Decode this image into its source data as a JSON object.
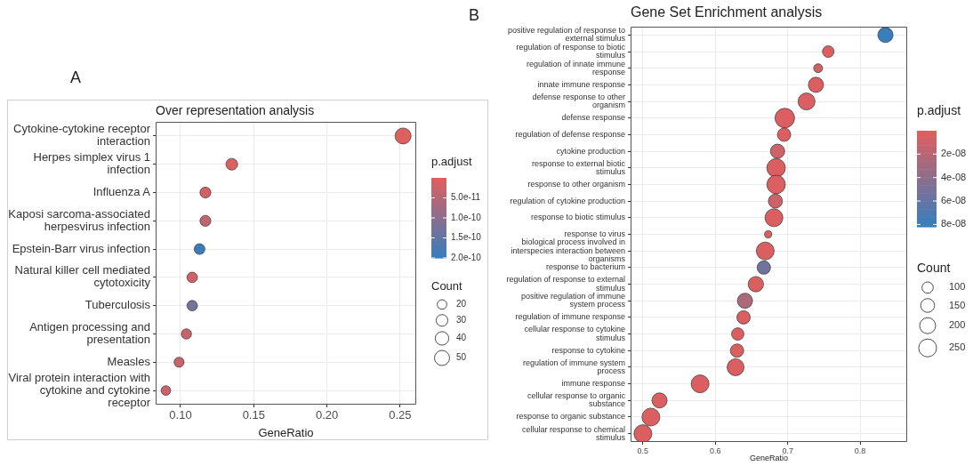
{
  "chart_data": [
    {
      "type": "bubble",
      "title": "Over representation analysis",
      "xlabel": "GeneRatio",
      "clabel": "p.adjust",
      "legend_title": "Count",
      "annotations": [
        "A"
      ],
      "orientation": "horizontal",
      "grid": true,
      "categories": [
        "Cytokine-cytokine receptor interaction",
        "Herpes simplex virus 1 infection",
        "Influenza A",
        "Kaposi sarcoma-associated herpesvirus infection",
        "Epstein-Barr virus infection",
        "Natural killer cell mediated cytotoxicity",
        "Tuberculosis",
        "Antigen processing and presentation",
        "Measles",
        "Viral protein interaction with cytokine and cytokine receptor"
      ],
      "values": [
        0.252,
        0.135,
        0.117,
        0.117,
        0.113,
        0.108,
        0.108,
        0.104,
        0.099,
        0.09
      ],
      "sizes": [
        56,
        30,
        26,
        26,
        25,
        24,
        24,
        23,
        22,
        20
      ],
      "cvalues": [
        5e-12,
        1e-11,
        1.5e-11,
        4e-11,
        1.95e-10,
        2e-11,
        1.3e-10,
        3e-11,
        3e-11,
        2.5e-11
      ],
      "size_legend": [
        20,
        30,
        40,
        50
      ],
      "clim": [
        0,
        2e-10
      ],
      "cticks": [
        {
          "value": 5e-11,
          "label": "5.0e-11"
        },
        {
          "value": 1e-10,
          "label": "1.0e-10"
        },
        {
          "value": 1.5e-10,
          "label": "1.5e-10"
        },
        {
          "value": 2e-10,
          "label": "2.0e-10"
        }
      ],
      "xlim": [
        0.083,
        0.261
      ],
      "xticks": [
        {
          "value": 0.1,
          "label": "0.10"
        },
        {
          "value": 0.15,
          "label": "0.15"
        },
        {
          "value": 0.2,
          "label": "0.20"
        },
        {
          "value": 0.25,
          "label": "0.25"
        }
      ]
    },
    {
      "type": "bubble",
      "title": "Gene Set Enrichment analysis",
      "xlabel": "GeneRatio",
      "clabel": "p.adjust",
      "legend_title": "Count",
      "annotations": [
        "B"
      ],
      "orientation": "horizontal",
      "grid": true,
      "categories": [
        "positive regulation of response to external stimulus",
        "regulation of response to biotic stimulus",
        "regulation of innate immune response",
        "innate immune response",
        "defense response to other organism",
        "defense response",
        "regulation of defense response",
        "cytokine production",
        "response to external biotic stimulus",
        "response to other organism",
        "regulation of cytokine production",
        "response to biotic stimulus",
        "response to virus",
        "biological process involved in interspecies interaction between organisms",
        "response to bacterium",
        "regulation of response to external stimulus",
        "positive regulation of immune system process",
        "regulation of immune response",
        "cellular response to cytokine stimulus",
        "response to cytokine",
        "regulation of immune system process",
        "immune response",
        "cellular response to organic substance",
        "response to organic substance",
        "cellular response to chemical stimulus"
      ],
      "values": [
        0.835,
        0.756,
        0.742,
        0.739,
        0.726,
        0.696,
        0.695,
        0.686,
        0.684,
        0.684,
        0.683,
        0.681,
        0.673,
        0.669,
        0.667,
        0.656,
        0.641,
        0.639,
        0.631,
        0.63,
        0.628,
        0.579,
        0.523,
        0.511,
        0.5
      ],
      "sizes": [
        180,
        105,
        62,
        180,
        225,
        300,
        140,
        160,
        270,
        270,
        155,
        250,
        40,
        250,
        140,
        185,
        180,
        140,
        120,
        140,
        225,
        250,
        180,
        250,
        250
      ],
      "cvalues": [
        8.1e-08,
        3e-09,
        1e-08,
        3e-09,
        3e-09,
        3e-09,
        3e-09,
        1e-08,
        3e-09,
        3e-09,
        1e-08,
        3e-09,
        3e-09,
        3e-09,
        5.5e-08,
        3e-09,
        2.5e-08,
        3e-09,
        3e-09,
        3e-09,
        3e-09,
        3e-09,
        3e-09,
        3e-09,
        3e-09
      ],
      "size_legend": [
        100,
        150,
        200,
        250
      ],
      "clim": [
        0,
        8.2e-08
      ],
      "cticks": [
        {
          "value": 2e-08,
          "label": "2e-08"
        },
        {
          "value": 4e-08,
          "label": "4e-08"
        },
        {
          "value": 6e-08,
          "label": "6e-08"
        },
        {
          "value": 8e-08,
          "label": "8e-08"
        }
      ],
      "xlim": [
        0.483,
        0.865
      ],
      "xticks": [
        0.5,
        0.6,
        0.7,
        0.8
      ]
    }
  ]
}
